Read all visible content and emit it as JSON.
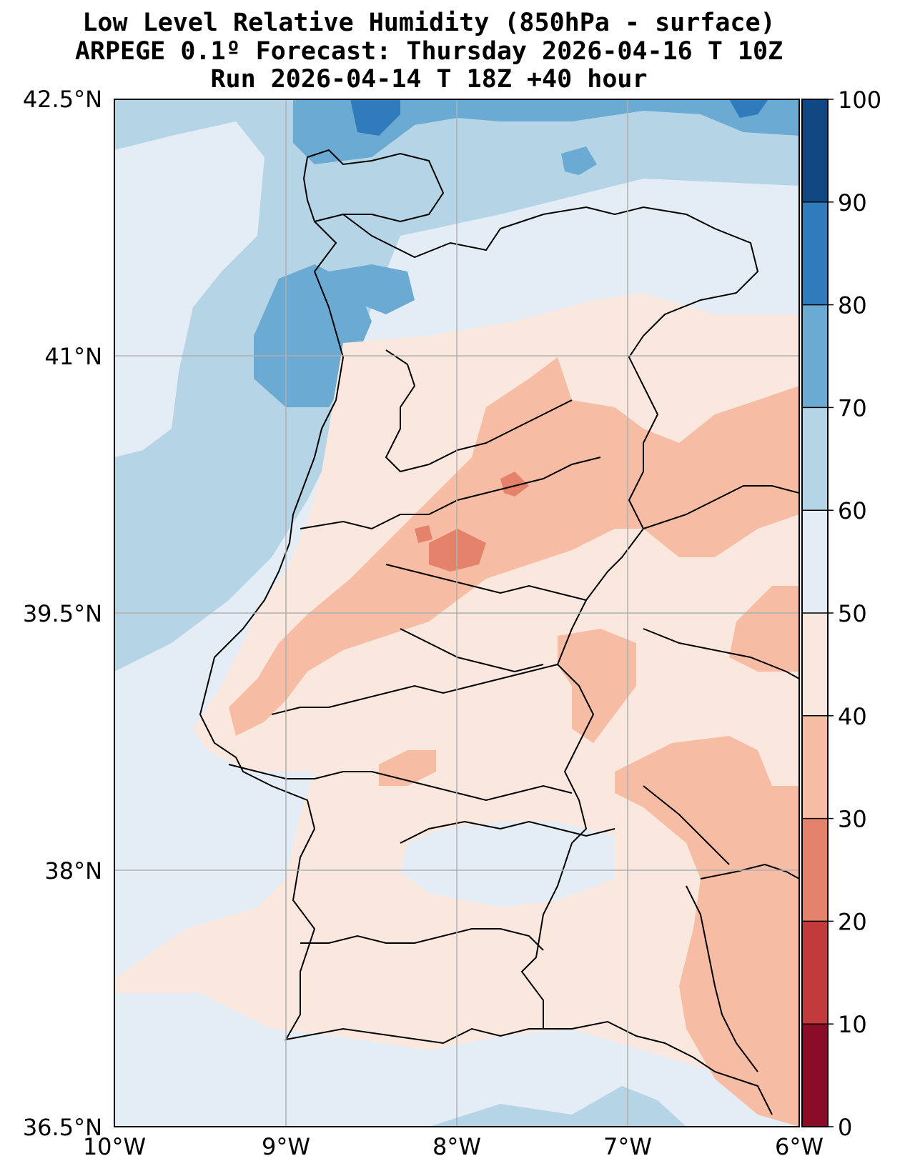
{
  "title": {
    "line1": "Low Level Relative Humidity (850hPa - surface)",
    "line2": "ARPEGE 0.1º Forecast: Thursday 2026-04-16 T 10Z",
    "line3": "Run 2026-04-14 T 18Z +40 hour"
  },
  "map": {
    "region": "Portugal",
    "lon_range": [
      -10,
      -6
    ],
    "lat_range": [
      36.5,
      42.5
    ],
    "lat_labels": [
      "42.5°N",
      "41°N",
      "39.5°N",
      "38°N",
      "36.5°N"
    ],
    "lat_values": [
      42.5,
      41,
      39.5,
      38,
      36.5
    ],
    "lon_labels": [
      "10°W",
      "9°W",
      "8°W",
      "7°W",
      "6°W"
    ],
    "lon_values": [
      -10,
      -9,
      -8,
      -7,
      -6
    ]
  },
  "colorbar": {
    "levels": [
      0,
      10,
      20,
      30,
      40,
      50,
      60,
      70,
      80,
      90,
      100
    ],
    "labels": [
      "0",
      "10",
      "20",
      "30",
      "40",
      "50",
      "60",
      "70",
      "80",
      "90",
      "100"
    ],
    "colors": [
      "#8b0c26",
      "#c23b3b",
      "#e4826b",
      "#f6bca4",
      "#fae7de",
      "#e4edf5",
      "#b5d5e7",
      "#6aaad3",
      "#2f7bbb",
      "#114783"
    ]
  },
  "colors": {
    "ocean": "#e4edf5",
    "land": "#fae7de",
    "border": "#000000",
    "grid": "#b0b0b0"
  }
}
